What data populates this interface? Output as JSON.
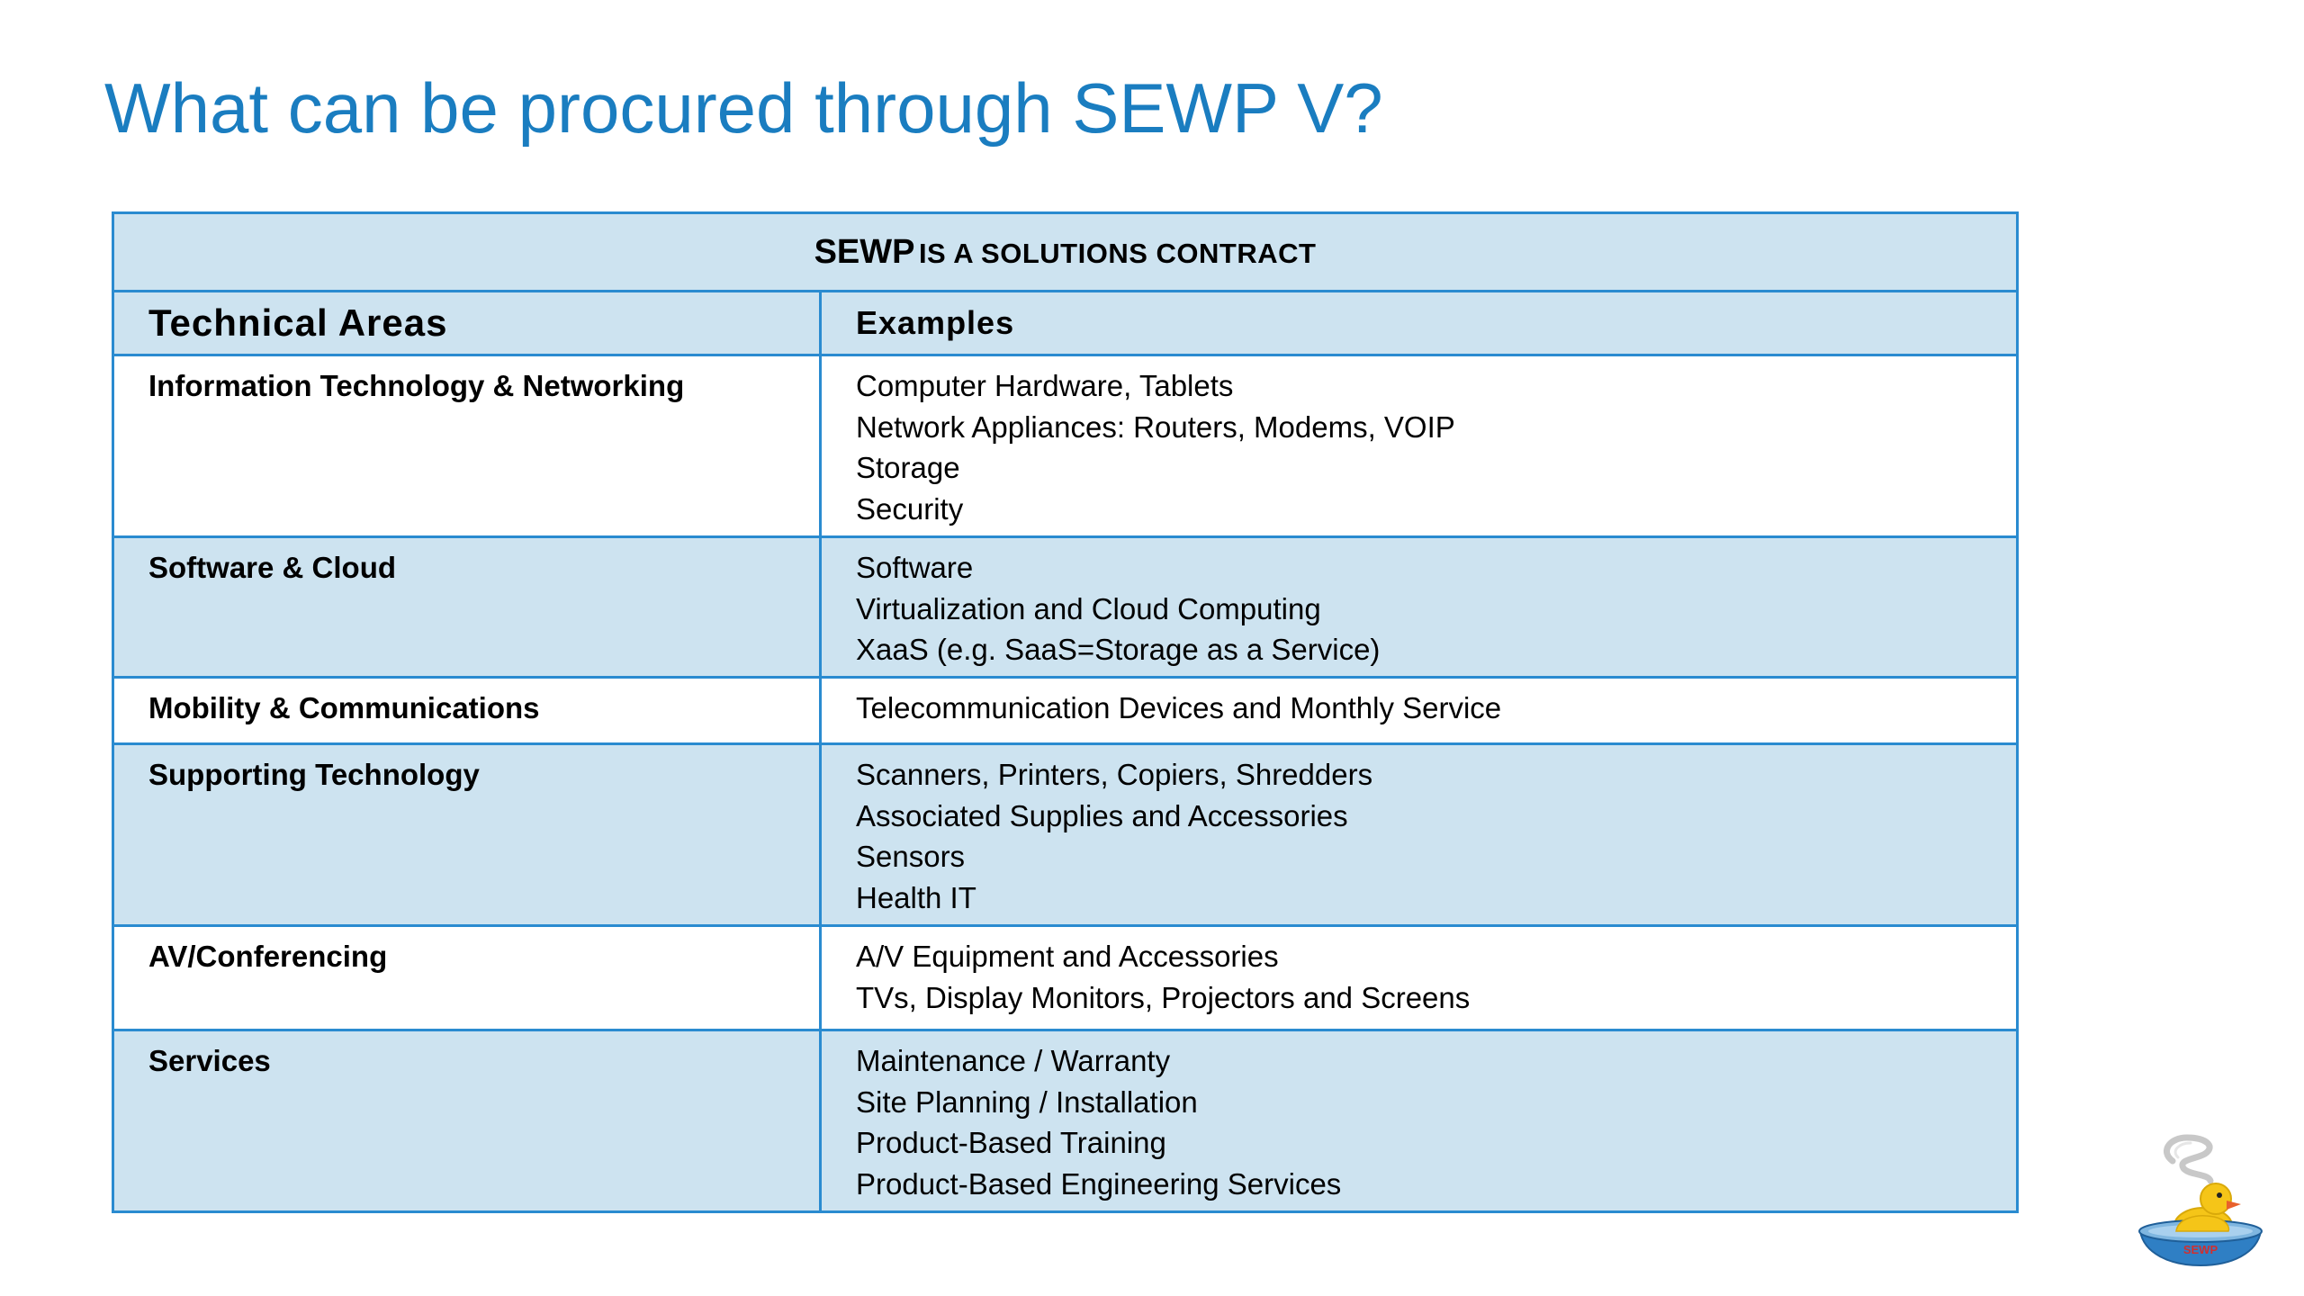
{
  "slide": {
    "title": "What can be procured through SEWP V?"
  },
  "table": {
    "banner_main": "SEWP",
    "banner_rest": "IS A SOLUTIONS CONTRACT",
    "headers": {
      "area": "Technical Areas",
      "examples": "Examples"
    },
    "rows": [
      {
        "area": "Information Technology & Networking",
        "examples": [
          "Computer Hardware, Tablets",
          "Network Appliances: Routers, Modems, VOIP",
          "Storage",
          "Security"
        ]
      },
      {
        "area": "Software & Cloud",
        "examples": [
          "Software",
          "Virtualization and Cloud Computing",
          "XaaS (e.g. SaaS=Storage as a Service)"
        ]
      },
      {
        "area": "Mobility & Communications",
        "examples": [
          "Telecommunication Devices and Monthly Service"
        ]
      },
      {
        "area": "Supporting Technology",
        "examples": [
          "Scanners, Printers, Copiers, Shredders",
          "Associated Supplies and Accessories",
          "Sensors",
          "Health IT"
        ]
      },
      {
        "area": "AV/Conferencing",
        "examples": [
          "A/V Equipment and Accessories",
          "TVs, Display Monitors, Projectors and Screens"
        ]
      },
      {
        "area": "Services",
        "examples": [
          "Maintenance / Warranty",
          "Site Planning / Installation",
          "Product-Based Training",
          "Product-Based Engineering Services"
        ]
      }
    ]
  },
  "logo": {
    "text": "SEWP",
    "icon": "duck-in-bowl-logo-icon",
    "colors": {
      "bowl": "#2f7fc4",
      "duck": "#f5c518",
      "beak": "#e8612c",
      "steam": "#c8c8c8",
      "text": "#d12f2f"
    }
  },
  "colors": {
    "title": "#1a7dc0",
    "border": "#2a8bd0",
    "shade": "#cde3f0"
  }
}
